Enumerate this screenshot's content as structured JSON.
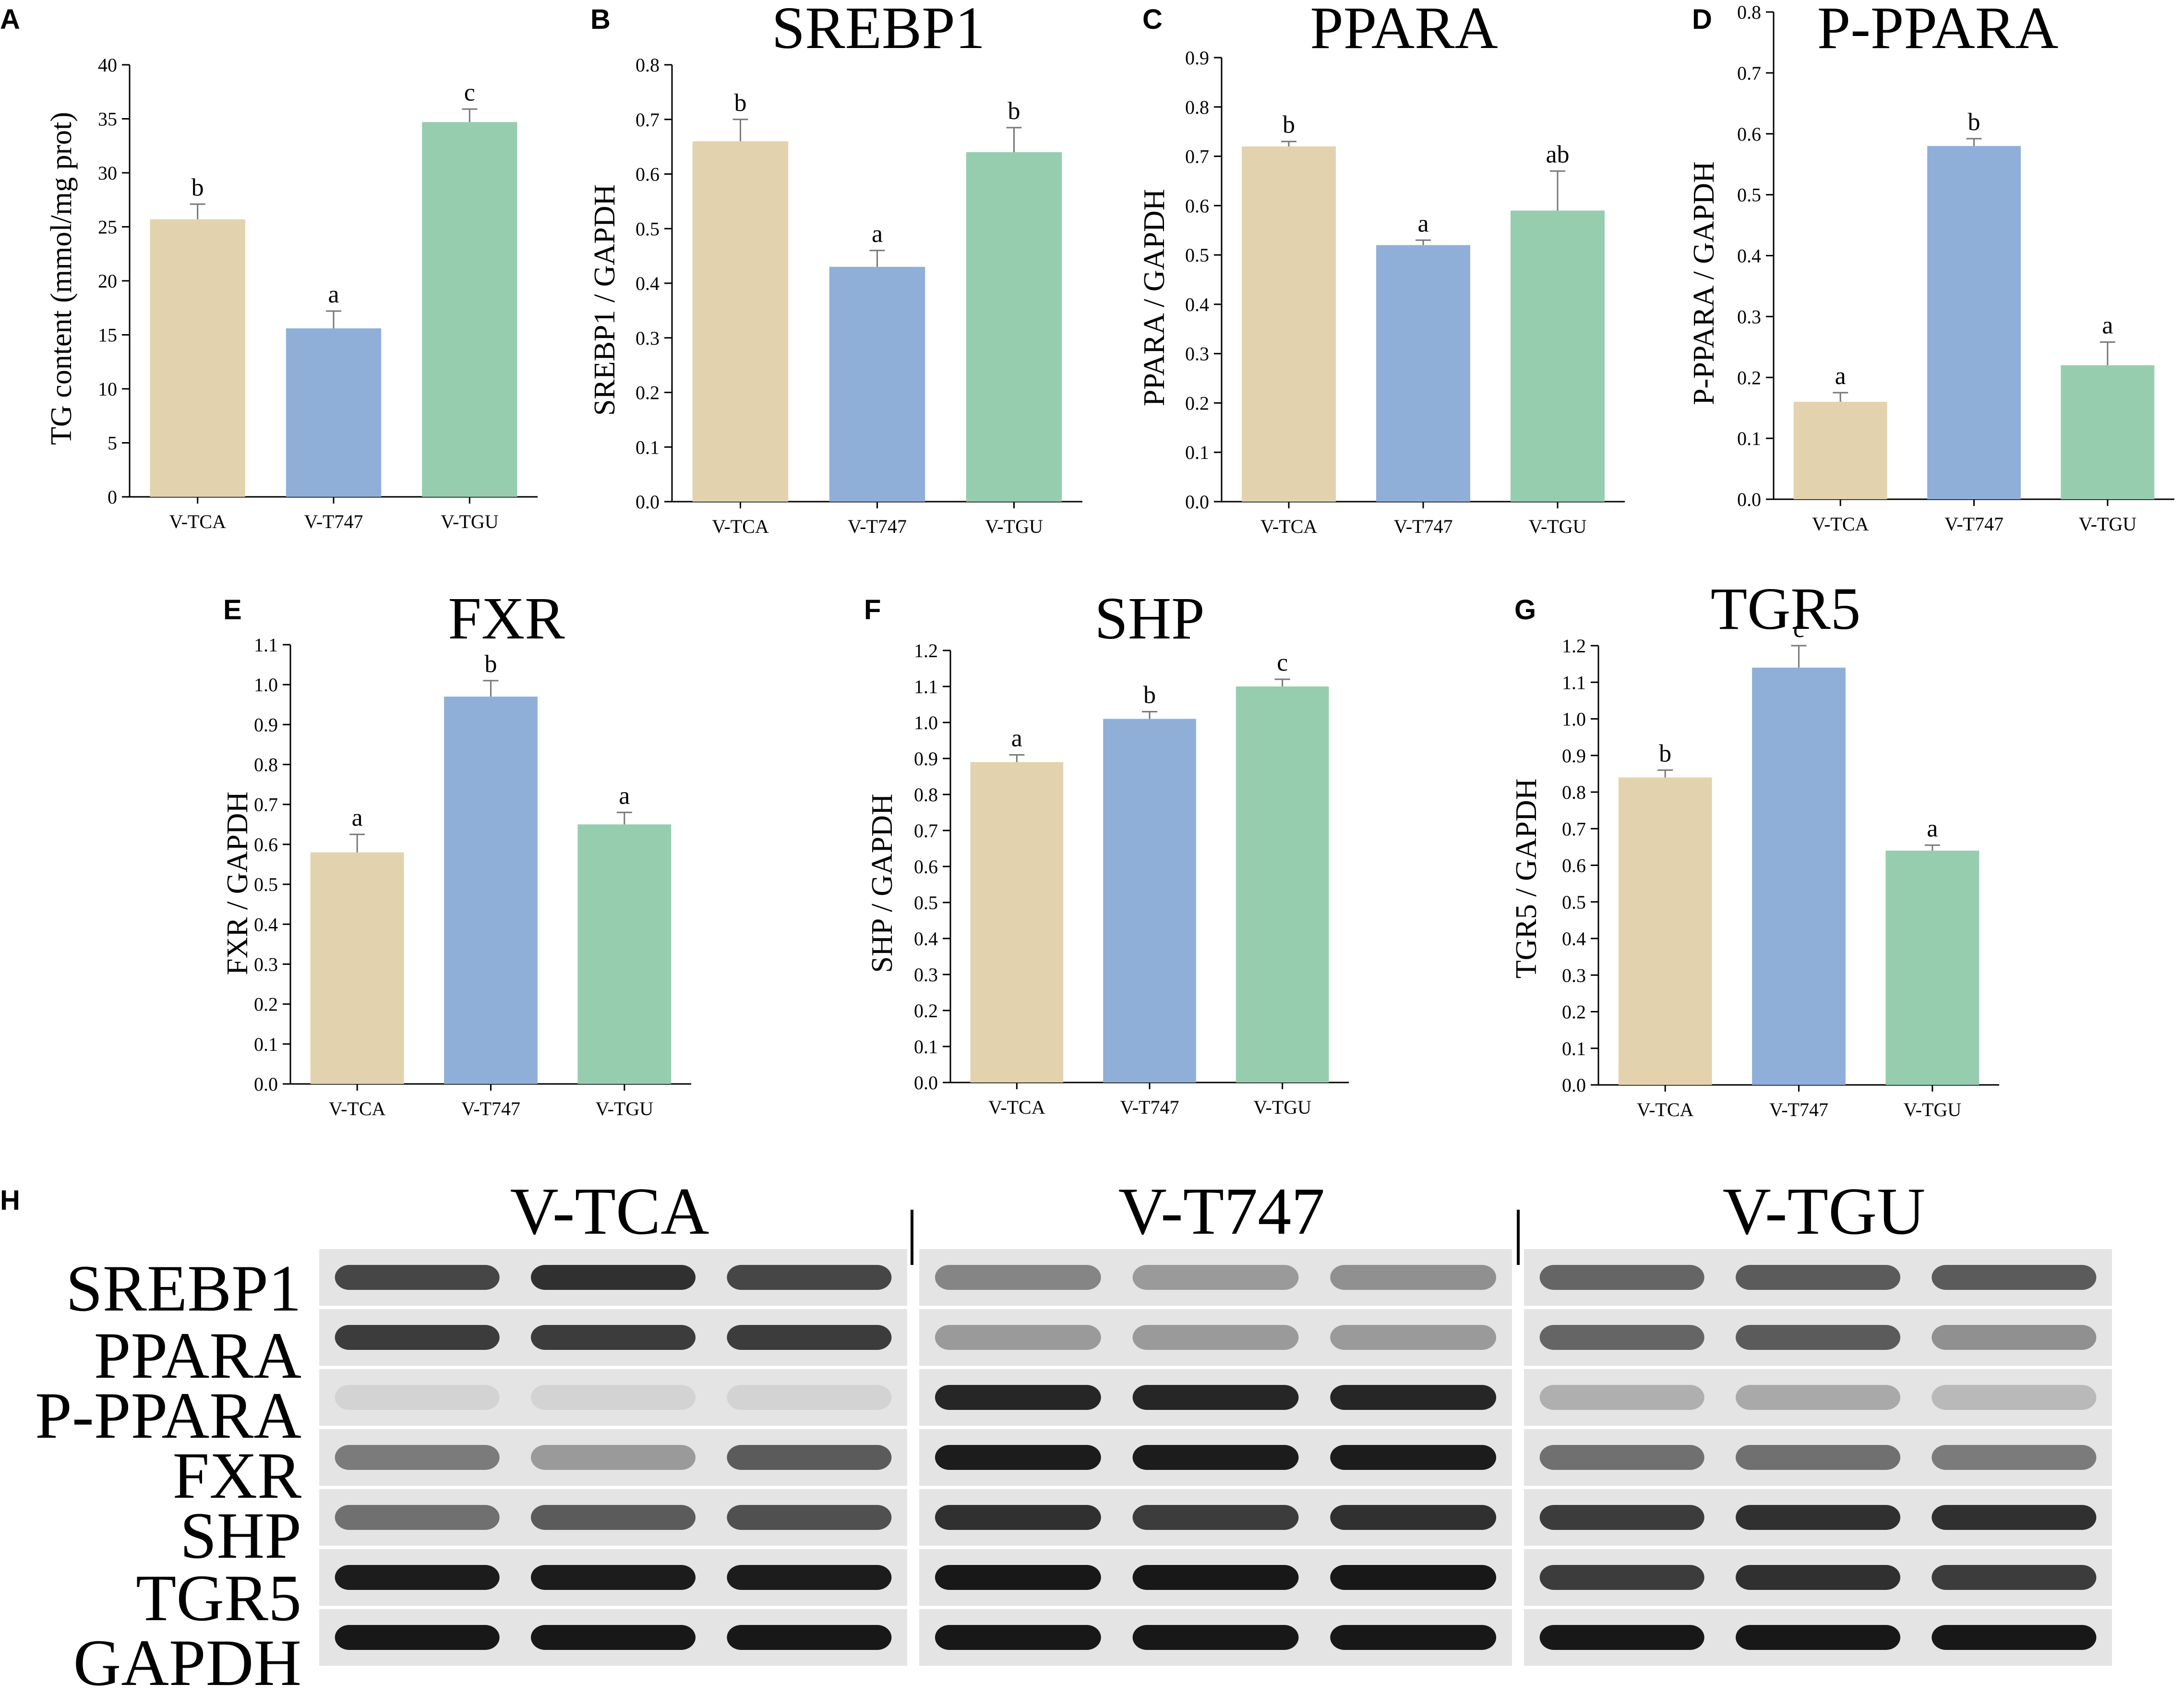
{
  "colors": {
    "tca": "#e2d3ae",
    "t747": "#8fafd8",
    "tgu": "#96cdae",
    "axis": "#000000"
  },
  "group_labels": [
    "V-TCA",
    "V-T747",
    "V-TGU"
  ],
  "chart_data": [
    {
      "panel": "A",
      "type": "bar",
      "title": "",
      "ylabel": "TG content (mmol/mg prot)",
      "xlabel": "",
      "categories": [
        "V-TCA",
        "V-T747",
        "V-TGU"
      ],
      "values": [
        25.7,
        15.6,
        34.7
      ],
      "errors": [
        1.4,
        1.6,
        1.2
      ],
      "letters": [
        "b",
        "a",
        "c"
      ],
      "ylim": [
        0,
        40
      ],
      "ticks": [
        "0",
        "5",
        "10",
        "15",
        "20",
        "25",
        "30",
        "35",
        "40"
      ]
    },
    {
      "panel": "B",
      "type": "bar",
      "title": "SREBP1",
      "ylabel": "SREBP1 / GAPDH",
      "xlabel": "",
      "categories": [
        "V-TCA",
        "V-T747",
        "V-TGU"
      ],
      "values": [
        0.66,
        0.43,
        0.64
      ],
      "errors": [
        0.04,
        0.03,
        0.045
      ],
      "letters": [
        "b",
        "a",
        "b"
      ],
      "ylim": [
        0,
        0.8
      ],
      "ticks": [
        "0.0",
        "0.1",
        "0.2",
        "0.3",
        "0.4",
        "0.5",
        "0.6",
        "0.7",
        "0.8"
      ]
    },
    {
      "panel": "C",
      "type": "bar",
      "title": "PPARA",
      "ylabel": "PPARA / GAPDH",
      "xlabel": "",
      "categories": [
        "V-TCA",
        "V-T747",
        "V-TGU"
      ],
      "values": [
        0.72,
        0.52,
        0.59
      ],
      "errors": [
        0.01,
        0.01,
        0.08
      ],
      "letters": [
        "b",
        "a",
        "ab"
      ],
      "ylim": [
        0,
        0.9
      ],
      "ticks": [
        "0.0",
        "0.1",
        "0.2",
        "0.3",
        "0.4",
        "0.5",
        "0.6",
        "0.7",
        "0.8",
        "0.9"
      ]
    },
    {
      "panel": "D",
      "type": "bar",
      "title": "P-PPARA",
      "ylabel": "P-PPARA / GAPDH",
      "xlabel": "",
      "categories": [
        "V-TCA",
        "V-T747",
        "V-TGU"
      ],
      "values": [
        0.16,
        0.58,
        0.22
      ],
      "errors": [
        0.015,
        0.012,
        0.038
      ],
      "letters": [
        "a",
        "b",
        "a"
      ],
      "ylim": [
        0,
        0.8
      ],
      "ticks": [
        "0.0",
        "0.1",
        "0.2",
        "0.3",
        "0.4",
        "0.5",
        "0.6",
        "0.7",
        "0.8"
      ]
    },
    {
      "panel": "E",
      "type": "bar",
      "title": "FXR",
      "ylabel": "FXR / GAPDH",
      "xlabel": "",
      "categories": [
        "V-TCA",
        "V-T747",
        "V-TGU"
      ],
      "values": [
        0.58,
        0.97,
        0.65
      ],
      "errors": [
        0.045,
        0.04,
        0.03
      ],
      "letters": [
        "a",
        "b",
        "a"
      ],
      "ylim": [
        0,
        1.1
      ],
      "ticks": [
        "0.0",
        "0.1",
        "0.2",
        "0.3",
        "0.4",
        "0.5",
        "0.6",
        "0.7",
        "0.8",
        "0.9",
        "1.0",
        "1.1"
      ]
    },
    {
      "panel": "F",
      "type": "bar",
      "title": "SHP",
      "ylabel": "SHP / GAPDH",
      "xlabel": "",
      "categories": [
        "V-TCA",
        "V-T747",
        "V-TGU"
      ],
      "values": [
        0.89,
        1.01,
        1.1
      ],
      "errors": [
        0.02,
        0.02,
        0.02
      ],
      "letters": [
        "a",
        "b",
        "c"
      ],
      "ylim": [
        0,
        1.2
      ],
      "ticks": [
        "0.0",
        "0.1",
        "0.2",
        "0.3",
        "0.4",
        "0.5",
        "0.6",
        "0.7",
        "0.8",
        "0.9",
        "1.0",
        "1.1",
        "1.2"
      ]
    },
    {
      "panel": "G",
      "type": "bar",
      "title": "TGR5",
      "ylabel": "TGR5 / GAPDH",
      "xlabel": "",
      "categories": [
        "V-TCA",
        "V-T747",
        "V-TGU"
      ],
      "values": [
        0.84,
        1.14,
        0.64
      ],
      "errors": [
        0.02,
        0.06,
        0.015
      ],
      "letters": [
        "b",
        "c",
        "a"
      ],
      "ylim": [
        0,
        1.2
      ],
      "ticks": [
        "0.0",
        "0.1",
        "0.2",
        "0.3",
        "0.4",
        "0.5",
        "0.6",
        "0.7",
        "0.8",
        "0.9",
        "1.0",
        "1.1",
        "1.2"
      ]
    }
  ],
  "blot": {
    "panel": "H",
    "groups": [
      "V-TCA",
      "V-T747",
      "V-TGU"
    ],
    "proteins": [
      "SREBP1",
      "PPARA",
      "P-PPARA",
      "FXR",
      "SHP",
      "TGR5",
      "GAPDH"
    ],
    "band_intensity": [
      [
        [
          0.75,
          0.85,
          0.75
        ],
        [
          0.45,
          0.35,
          0.4
        ],
        [
          0.6,
          0.65,
          0.65
        ]
      ],
      [
        [
          0.8,
          0.8,
          0.8
        ],
        [
          0.35,
          0.35,
          0.35
        ],
        [
          0.6,
          0.65,
          0.4
        ]
      ],
      [
        [
          0.08,
          0.08,
          0.08
        ],
        [
          0.9,
          0.9,
          0.9
        ],
        [
          0.25,
          0.28,
          0.2
        ]
      ],
      [
        [
          0.5,
          0.35,
          0.65
        ],
        [
          0.95,
          0.95,
          0.95
        ],
        [
          0.55,
          0.55,
          0.5
        ]
      ],
      [
        [
          0.55,
          0.65,
          0.7
        ],
        [
          0.85,
          0.8,
          0.85
        ],
        [
          0.8,
          0.85,
          0.85
        ]
      ],
      [
        [
          0.95,
          0.95,
          0.95
        ],
        [
          0.97,
          0.97,
          0.97
        ],
        [
          0.8,
          0.85,
          0.8
        ]
      ],
      [
        [
          0.97,
          0.97,
          0.97
        ],
        [
          0.97,
          0.97,
          0.97
        ],
        [
          0.97,
          0.97,
          0.97
        ]
      ]
    ]
  }
}
